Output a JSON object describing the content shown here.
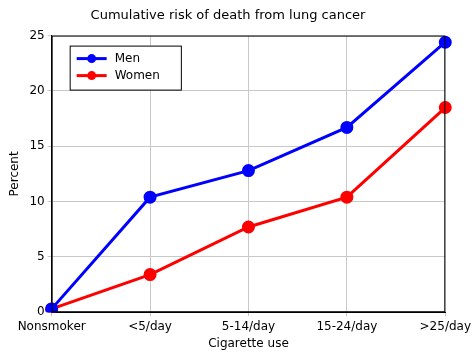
{
  "chart_data": {
    "type": "line",
    "title": "Cumulative risk of death from lung cancer",
    "x_label": "Cigarette use",
    "y_label": "Percent",
    "categories": [
      "Nonsmoker",
      "<5/day",
      "5-14/day",
      "15-24/day",
      ">25/day"
    ],
    "series": [
      {
        "name": "Men",
        "color": "#0000ff",
        "values": [
          0.3,
          10.4,
          12.8,
          16.7,
          24.4
        ]
      },
      {
        "name": "Women",
        "color": "#ff0000",
        "values": [
          0.3,
          3.4,
          7.7,
          10.4,
          18.5
        ]
      }
    ],
    "ylim": [
      0,
      25
    ],
    "yticks": [
      0,
      5,
      10,
      15,
      20,
      25
    ],
    "grid": true,
    "legend": "upper left",
    "marker": "circle"
  }
}
